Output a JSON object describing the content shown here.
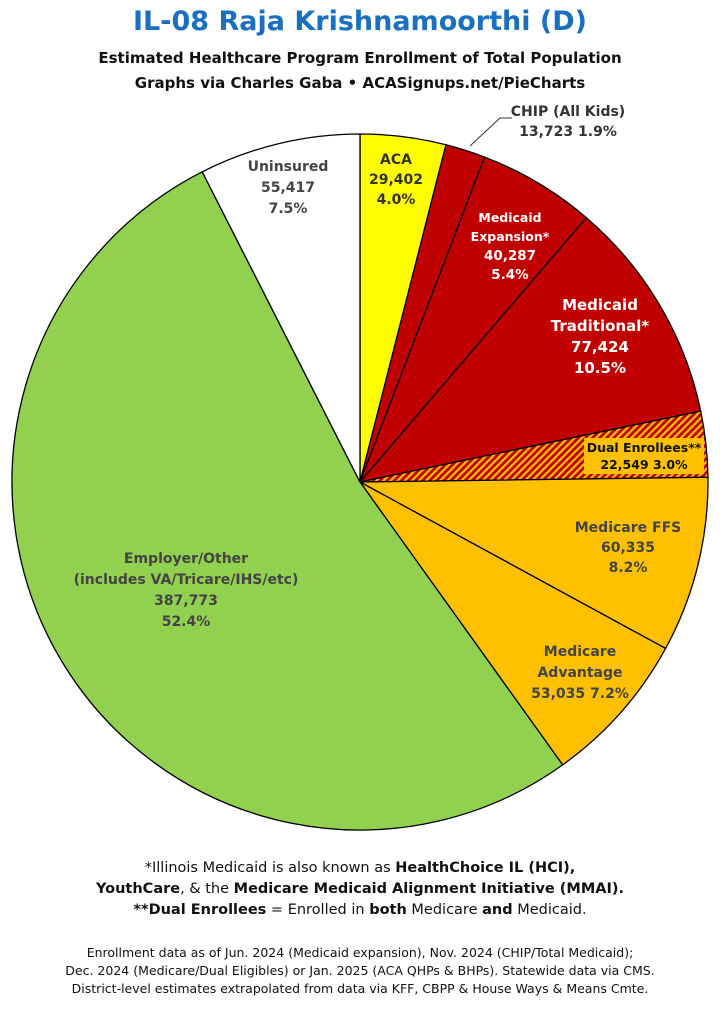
{
  "title": "IL-08 Raja Krishnamoorthi (D)",
  "subtitle1": "Estimated Healthcare Program Enrollment of Total Population",
  "subtitle2": "Graphs via Charles Gaba  •  ACASignups.net/PieCharts",
  "chart_data": {
    "type": "pie",
    "start": "12 o'clock, clockwise",
    "slices": [
      {
        "name": "ACA",
        "value": 29402,
        "percent": "4.0%",
        "color": "#ffff00",
        "text_color": "#333333"
      },
      {
        "name": "CHIP (All Kids)",
        "value": 13723,
        "percent": "1.9%",
        "color": "#c00000",
        "text_color": "#333333"
      },
      {
        "name": "Medicaid Expansion*",
        "value": 40287,
        "percent": "5.4%",
        "color": "#c00000",
        "text_color": "#ffffff"
      },
      {
        "name": "Medicaid Traditional*",
        "value": 77424,
        "percent": "10.5%",
        "color": "#c00000",
        "text_color": "#ffffff"
      },
      {
        "name": "Dual Enrollees**",
        "value": 22549,
        "percent": "3.0%",
        "color": "#c00000",
        "hatch": "#ffc000",
        "text_color": "#111111"
      },
      {
        "name": "Medicare FFS",
        "value": 60335,
        "percent": "8.2%",
        "color": "#ffc000",
        "text_color": "#444444"
      },
      {
        "name": "Medicare Advantage",
        "value": 53035,
        "percent": "7.2%",
        "color": "#ffc000",
        "text_color": "#444444"
      },
      {
        "name": "Employer/Other (includes VA/Tricare/IHS/etc)",
        "value": 387773,
        "percent": "52.4%",
        "color": "#92d050",
        "text_color": "#444444"
      },
      {
        "name": "Uninsured",
        "value": 55417,
        "percent": "7.5%",
        "color": "#ffffff",
        "text_color": "#444444"
      }
    ],
    "labels": [
      {
        "lines": [
          "ACA",
          "29,402",
          "4.0%"
        ]
      },
      {
        "lines": [
          "CHIP (All Kids)",
          "13,723 1.9%"
        ]
      },
      {
        "lines": [
          "Medicaid",
          "Expansion*",
          "40,287",
          "5.4%"
        ]
      },
      {
        "lines": [
          "Medicaid",
          "Traditional*",
          "77,424",
          "10.5%"
        ]
      },
      {
        "lines": [
          "Dual Enrollees**",
          "22,549 3.0%"
        ]
      },
      {
        "lines": [
          "Medicare FFS",
          "60,335",
          "8.2%"
        ]
      },
      {
        "lines": [
          "Medicare",
          "Advantage",
          "53,035 7.2%"
        ]
      },
      {
        "lines": [
          "Employer/Other",
          "(includes VA/Tricare/IHS/etc)",
          "387,773",
          "52.4%"
        ]
      },
      {
        "lines": [
          "Uninsured",
          "55,417",
          "7.5%"
        ]
      }
    ]
  },
  "notes": {
    "line1_a": "*Illinois Medicaid is also known as ",
    "line1_b": "HealthChoice IL (HCI),",
    "line2_a": "YouthCare",
    "line2_b": ", & the ",
    "line2_c": "Medicare Medicaid Alignment Initiative (MMAI).",
    "line3_a": "**Dual Enrollees",
    "line3_b": " = Enrolled in ",
    "line3_c": "both",
    "line3_d": " Medicare ",
    "line3_e": "and",
    "line3_f": " Medicaid."
  },
  "footer": {
    "line1": "Enrollment data as of Jun. 2024 (Medicaid expansion), Nov. 2024 (CHIP/Total Medicaid);",
    "line2": "Dec. 2024 (Medicare/Dual Eligibles) or Jan. 2025 (ACA QHPs & BHPs). Statewide data via CMS.",
    "line3": "District-level estimates extrapolated from data via KFF, CBPP & House Ways & Means Cmte."
  }
}
